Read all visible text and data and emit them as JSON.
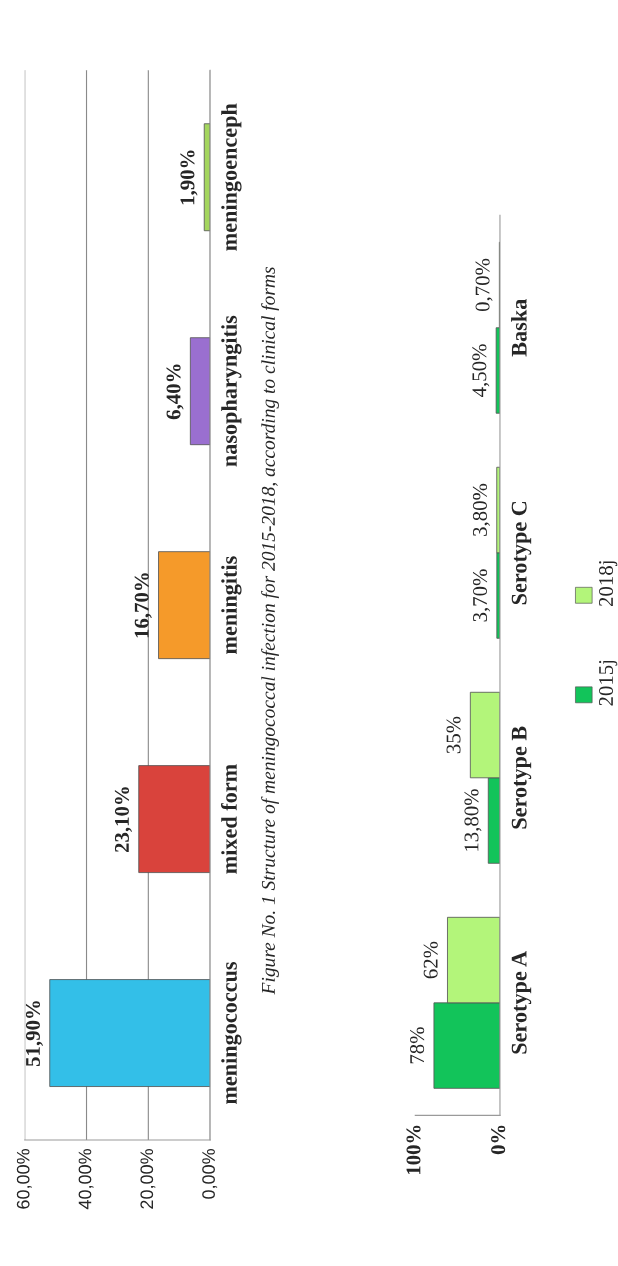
{
  "chart_data": [
    {
      "type": "bar",
      "orientation": "horizontal",
      "categories": [
        "meningoenceph",
        "nasopharyngitis",
        "meningitis",
        "mixed form",
        "meningococcus"
      ],
      "values": [
        1.9,
        6.4,
        16.7,
        23.1,
        51.9
      ],
      "colors": [
        "#a4d65e",
        "#9a6fd0",
        "#f59a2a",
        "#d9433c",
        "#33bfe8"
      ],
      "value_labels": [
        "1,90%",
        "6,40%",
        "16,70%",
        "23,10%",
        "51,90%"
      ],
      "xlim": [
        60,
        0
      ],
      "xticks": [
        {
          "value": 60,
          "label": "60,00%"
        },
        {
          "value": 40,
          "label": "40,00%"
        },
        {
          "value": 20,
          "label": "20,00%"
        },
        {
          "value": 0,
          "label": "0,00%"
        }
      ],
      "grid": "x",
      "annotations": [
        "Figure No. 1 Structure of meningococcal infection for 2015-2018, according to clinical forms"
      ]
    },
    {
      "type": "bar",
      "orientation": "horizontal",
      "categories": [
        "Baska",
        "Serotype C",
        "Serotype B",
        "Serotype A"
      ],
      "series": [
        {
          "name": "2015j",
          "color": "#12c45a",
          "values": [
            4.5,
            3.7,
            13.8,
            78
          ],
          "value_labels": [
            "4,50%",
            "3,70%",
            "13,80%",
            "78%"
          ]
        },
        {
          "name": "2018j",
          "color": "#b3f57a",
          "values": [
            0.7,
            3.8,
            35,
            62
          ],
          "value_labels": [
            "0,70%",
            "3,80%",
            "35%",
            "62%"
          ]
        }
      ],
      "xlim": [
        100,
        0
      ],
      "xticks": [
        {
          "value": 100,
          "label": "100%"
        },
        {
          "value": 0,
          "label": "0%"
        }
      ],
      "legend": "right"
    }
  ]
}
